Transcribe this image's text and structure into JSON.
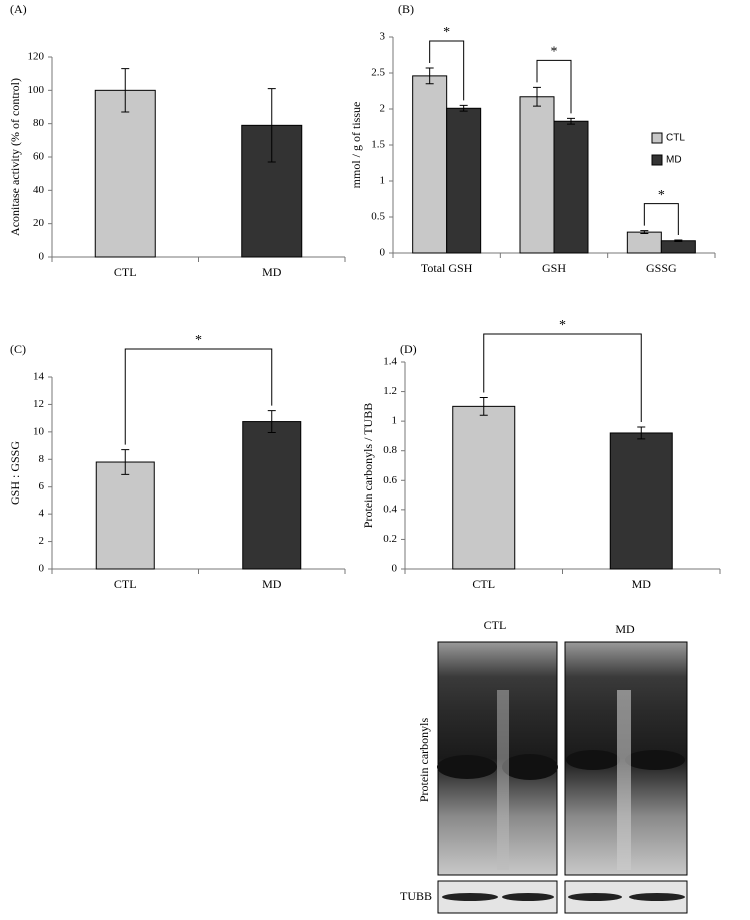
{
  "chart_data": [
    {
      "type": "bar",
      "label": "(A)",
      "y_label": "Aconitase activity (% of control)",
      "categories": [
        "CTL",
        "MD"
      ],
      "values": [
        100,
        79
      ],
      "errors": [
        13,
        22
      ],
      "colors": [
        "#c8c8c8",
        "#333333"
      ],
      "ylim": [
        0,
        120
      ],
      "yticks": [
        0,
        20,
        40,
        60,
        80,
        100,
        120
      ]
    },
    {
      "type": "bar",
      "label": "(B)",
      "y_label": "mmol / g of tissue",
      "categories": [
        "Total GSH",
        "GSH",
        "GSSG"
      ],
      "series": [
        {
          "name": "CTL",
          "color": "#c8c8c8",
          "values": [
            2.46,
            2.17,
            0.29
          ],
          "errors": [
            0.11,
            0.13,
            0.02
          ]
        },
        {
          "name": "MD",
          "color": "#333333",
          "values": [
            2.01,
            1.83,
            0.17
          ],
          "errors": [
            0.04,
            0.04,
            0.01
          ]
        }
      ],
      "significance": [
        "*",
        "*",
        "*"
      ],
      "legend": "right",
      "ylim": [
        0,
        3
      ],
      "yticks": [
        0,
        0.5,
        1,
        1.5,
        2,
        2.5,
        3
      ]
    },
    {
      "type": "bar",
      "label": "(C)",
      "y_label": "GSH : GSSG",
      "categories": [
        "CTL",
        "MD"
      ],
      "values": [
        7.8,
        10.75
      ],
      "errors": [
        0.9,
        0.8
      ],
      "colors": [
        "#c8c8c8",
        "#333333"
      ],
      "significance": "*",
      "ylim": [
        0,
        14
      ],
      "yticks": [
        0,
        2,
        4,
        6,
        8,
        10,
        12,
        14
      ]
    },
    {
      "type": "bar",
      "label": "(D)",
      "y_label": "Protein carbonyls / TUBB",
      "categories": [
        "CTL",
        "MD"
      ],
      "values": [
        1.1,
        0.92
      ],
      "errors": [
        0.06,
        0.04
      ],
      "colors": [
        "#c8c8c8",
        "#333333"
      ],
      "significance": "*",
      "ylim": [
        0,
        1.4
      ],
      "yticks": [
        0,
        0.2,
        0.4,
        0.6,
        0.8,
        1,
        1.2,
        1.4
      ]
    }
  ],
  "blot": {
    "groups": [
      "CTL",
      "MD"
    ],
    "bands": [
      "Protein carbonyls",
      "TUBB"
    ]
  }
}
